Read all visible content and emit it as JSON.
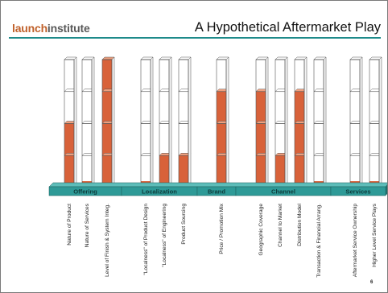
{
  "header": {
    "logo_part1": "launch",
    "logo_part2": "institute",
    "title": "A Hypothetical Aftermarket Play"
  },
  "page_number": "6",
  "colors": {
    "accent": "#1e8a8a",
    "bar_fill": "#d8623a",
    "band": "#2e9a97"
  },
  "chart_data": {
    "type": "bar",
    "levels": 4,
    "groups": [
      {
        "label": "Offering",
        "items": [
          {
            "label": "Nature of Product",
            "value": 2
          },
          {
            "label": "Nature of Services",
            "value": 0.2
          },
          {
            "label": "Level of Finish & System Integ.",
            "value": 4
          }
        ]
      },
      {
        "label": "Localization",
        "items": [
          {
            "label": "\"Localness\" of Product Design",
            "value": 0.2
          },
          {
            "label": "\"Localness\" of Engineering",
            "value": 1
          },
          {
            "label": "Product Sourcing",
            "value": 1
          }
        ]
      },
      {
        "label": "Brand",
        "items": [
          {
            "label": "Price / Promotion Mix",
            "value": 3
          }
        ]
      },
      {
        "label": "Channel",
        "items": [
          {
            "label": "Geographic Coverage",
            "value": 3
          },
          {
            "label": "Channel to Market",
            "value": 1
          },
          {
            "label": "Distribution Model",
            "value": 3
          },
          {
            "label": "Transaction & Financial Arrang.",
            "value": 0.2
          }
        ]
      },
      {
        "label": "Services",
        "items": [
          {
            "label": "Aftermarket Service Ownership",
            "value": 0.2
          },
          {
            "label": "Higher Level Service Plays",
            "value": 0.2
          }
        ]
      }
    ]
  }
}
